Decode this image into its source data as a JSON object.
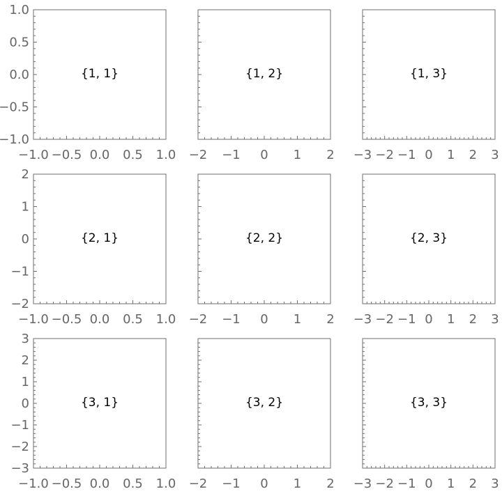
{
  "chart_data": [
    {
      "type": "grid-panel",
      "label": "{1, 1}",
      "xlim": [
        -1,
        1
      ],
      "ylim": [
        -1,
        1
      ],
      "xticks": [
        "−1.0",
        "−0.5",
        "0.0",
        "0.5",
        "1.0"
      ],
      "xtick_values": [
        -1,
        -0.5,
        0,
        0.5,
        1
      ],
      "yticks": [
        "−1.0",
        "−0.5",
        "0.0",
        "0.5",
        "1.0"
      ],
      "ytick_values": [
        -1,
        -0.5,
        0,
        0.5,
        1
      ]
    },
    {
      "type": "grid-panel",
      "label": "{1, 2}",
      "xlim": [
        -2,
        2
      ],
      "ylim": [
        -1,
        1
      ],
      "xticks": [
        "−2",
        "−1",
        "0",
        "1",
        "2"
      ],
      "xtick_values": [
        -2,
        -1,
        0,
        1,
        2
      ],
      "yticks": [],
      "ytick_values": [
        -1,
        -0.5,
        0,
        0.5,
        1
      ]
    },
    {
      "type": "grid-panel",
      "label": "{1, 3}",
      "xlim": [
        -3,
        3
      ],
      "ylim": [
        -1,
        1
      ],
      "xticks": [
        "−3",
        "−2",
        "−1",
        "0",
        "1",
        "2",
        "3"
      ],
      "xtick_values": [
        -3,
        -2,
        -1,
        0,
        1,
        2,
        3
      ],
      "yticks": [],
      "ytick_values": [
        -1,
        -0.5,
        0,
        0.5,
        1
      ]
    },
    {
      "type": "grid-panel",
      "label": "{2, 1}",
      "xlim": [
        -1,
        1
      ],
      "ylim": [
        -2,
        2
      ],
      "xticks": [
        "−1.0",
        "−0.5",
        "0.0",
        "0.5",
        "1.0"
      ],
      "xtick_values": [
        -1,
        -0.5,
        0,
        0.5,
        1
      ],
      "yticks": [
        "−2",
        "−1",
        "0",
        "1",
        "2"
      ],
      "ytick_values": [
        -2,
        -1,
        0,
        1,
        2
      ]
    },
    {
      "type": "grid-panel",
      "label": "{2, 2}",
      "xlim": [
        -2,
        2
      ],
      "ylim": [
        -2,
        2
      ],
      "xticks": [
        "−2",
        "−1",
        "0",
        "1",
        "2"
      ],
      "xtick_values": [
        -2,
        -1,
        0,
        1,
        2
      ],
      "yticks": [],
      "ytick_values": [
        -2,
        -1,
        0,
        1,
        2
      ]
    },
    {
      "type": "grid-panel",
      "label": "{2, 3}",
      "xlim": [
        -3,
        3
      ],
      "ylim": [
        -2,
        2
      ],
      "xticks": [
        "−3",
        "−2",
        "−1",
        "0",
        "1",
        "2",
        "3"
      ],
      "xtick_values": [
        -3,
        -2,
        -1,
        0,
        1,
        2,
        3
      ],
      "yticks": [],
      "ytick_values": [
        -2,
        -1,
        0,
        1,
        2
      ]
    },
    {
      "type": "grid-panel",
      "label": "{3, 1}",
      "xlim": [
        -1,
        1
      ],
      "ylim": [
        -3,
        3
      ],
      "xticks": [
        "−1.0",
        "−0.5",
        "0.0",
        "0.5",
        "1.0"
      ],
      "xtick_values": [
        -1,
        -0.5,
        0,
        0.5,
        1
      ],
      "yticks": [
        "−3",
        "−2",
        "−1",
        "0",
        "1",
        "2",
        "3"
      ],
      "ytick_values": [
        -3,
        -2,
        -1,
        0,
        1,
        2,
        3
      ]
    },
    {
      "type": "grid-panel",
      "label": "{3, 2}",
      "xlim": [
        -2,
        2
      ],
      "ylim": [
        -3,
        3
      ],
      "xticks": [
        "−2",
        "−1",
        "0",
        "1",
        "2"
      ],
      "xtick_values": [
        -2,
        -1,
        0,
        1,
        2
      ],
      "yticks": [],
      "ytick_values": [
        -3,
        -2,
        -1,
        0,
        1,
        2,
        3
      ]
    },
    {
      "type": "grid-panel",
      "label": "{3, 3}",
      "xlim": [
        -3,
        3
      ],
      "ylim": [
        -3,
        3
      ],
      "xticks": [
        "−3",
        "−2",
        "−1",
        "0",
        "1",
        "2",
        "3"
      ],
      "xtick_values": [
        -3,
        -2,
        -1,
        0,
        1,
        2,
        3
      ],
      "yticks": [],
      "ytick_values": [
        -3,
        -2,
        -1,
        0,
        1,
        2,
        3
      ]
    }
  ],
  "colors": {
    "frame": "#6e6e6e",
    "tick_label": "#666666",
    "panel_label": "#000000"
  }
}
